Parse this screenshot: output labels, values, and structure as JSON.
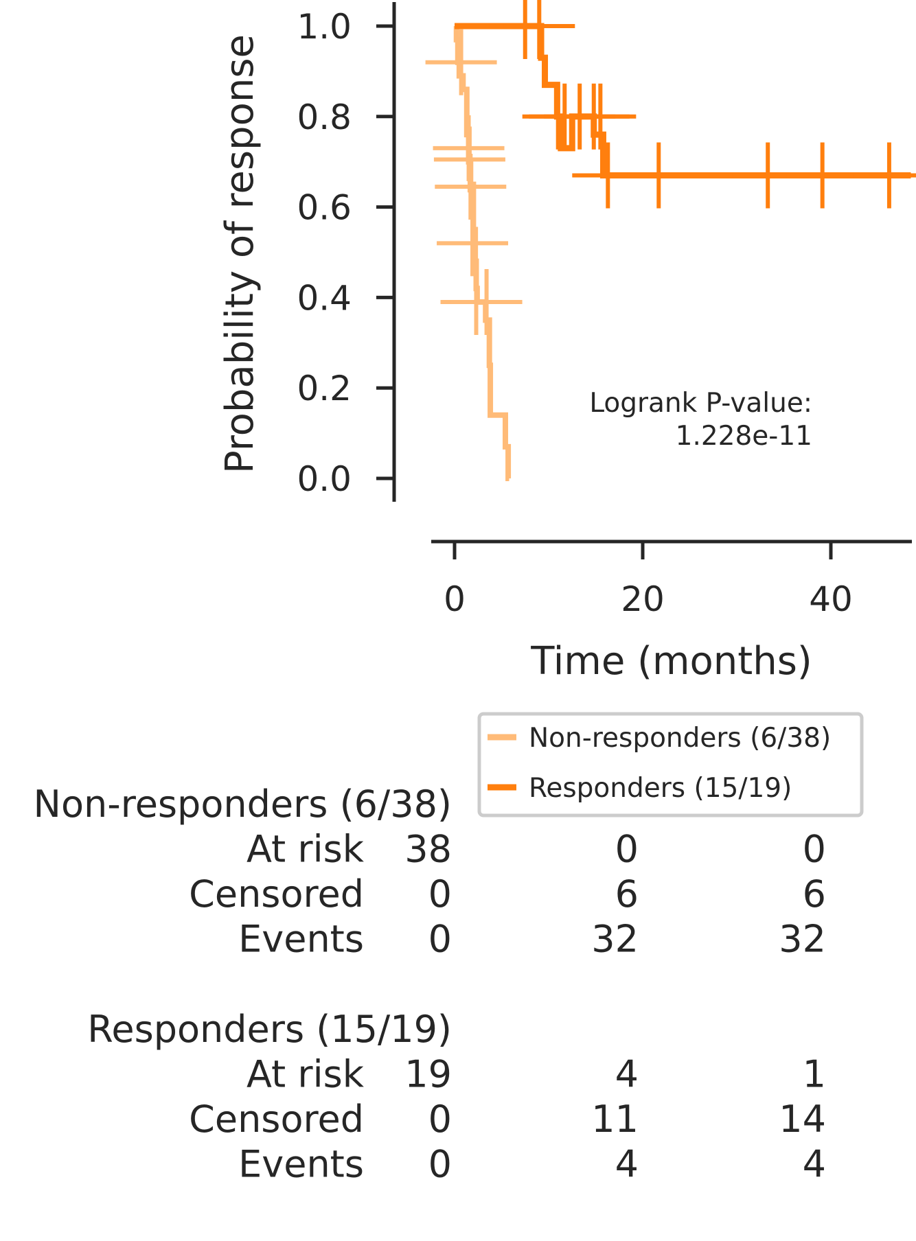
{
  "chart_data": {
    "type": "line",
    "subtype": "kaplan-meier",
    "title": "",
    "xlabel": "Time (months)",
    "ylabel": "Probability of response",
    "xlim": [
      -3.2,
      48.5
    ],
    "ylim": [
      -0.05,
      1.05
    ],
    "xticks": [
      0,
      20,
      40
    ],
    "yticks": [
      0.0,
      0.2,
      0.4,
      0.6,
      0.8,
      1.0
    ],
    "ytick_labels": [
      "0.0",
      "0.2",
      "0.4",
      "0.6",
      "0.8",
      "1.0"
    ],
    "grid": false,
    "legend_position": "below the plot, right",
    "annotation": {
      "line1": "Logrank P-value:",
      "line2": "1.228e-11"
    },
    "series": [
      {
        "name": "Non-responders (6/38)",
        "color": "#ffbb78",
        "steps": [
          [
            0.0,
            1.0
          ],
          [
            0.2,
            0.97
          ],
          [
            0.35,
            0.92
          ],
          [
            0.5,
            0.89
          ],
          [
            0.9,
            0.86
          ],
          [
            1.3,
            0.76
          ],
          [
            1.5,
            0.7
          ],
          [
            1.7,
            0.65
          ],
          [
            2.0,
            0.55
          ],
          [
            2.2,
            0.48
          ],
          [
            2.3,
            0.42
          ],
          [
            2.4,
            0.39
          ],
          [
            3.3,
            0.35
          ],
          [
            3.7,
            0.25
          ],
          [
            3.8,
            0.14
          ],
          [
            5.4,
            0.07
          ],
          [
            5.7,
            0.0
          ]
        ],
        "end_x": 5.8,
        "censor_marks": [
          [
            0.7,
            0.92
          ],
          [
            1.5,
            0.73
          ],
          [
            1.6,
            0.705
          ],
          [
            1.7,
            0.645
          ],
          [
            1.9,
            0.52
          ],
          [
            2.3,
            0.39
          ],
          [
            3.4,
            0.39
          ]
        ]
      },
      {
        "name": "Responders (15/19)",
        "color": "#ff7f0e",
        "steps": [
          [
            0.0,
            1.0
          ],
          [
            9.2,
            0.93
          ],
          [
            9.6,
            0.87
          ],
          [
            10.9,
            0.8
          ],
          [
            11.3,
            0.73
          ],
          [
            12.5,
            0.8
          ],
          [
            14.8,
            0.76
          ],
          [
            15.8,
            0.67
          ]
        ],
        "end_x": 48.5,
        "censor_marks": [
          [
            7.5,
            1.0
          ],
          [
            9.0,
            1.0
          ],
          [
            11.0,
            0.8
          ],
          [
            11.7,
            0.8
          ],
          [
            13.3,
            0.8
          ],
          [
            14.8,
            0.8
          ],
          [
            15.5,
            0.8
          ],
          [
            16.3,
            0.67
          ],
          [
            21.7,
            0.67
          ],
          [
            33.3,
            0.67
          ],
          [
            39.1,
            0.67
          ],
          [
            46.2,
            0.67
          ]
        ]
      }
    ],
    "at_risk_table": {
      "times": [
        "0",
        "20",
        "40"
      ],
      "groups": [
        {
          "name": "Non-responders (6/38)",
          "rows": [
            {
              "label": "At risk",
              "values": [
                "38",
                "0",
                "0"
              ]
            },
            {
              "label": "Censored",
              "values": [
                "0",
                "6",
                "6"
              ]
            },
            {
              "label": "Events",
              "values": [
                "0",
                "32",
                "32"
              ]
            }
          ]
        },
        {
          "name": "Responders (15/19)",
          "rows": [
            {
              "label": "At risk",
              "values": [
                "19",
                "4",
                "1"
              ]
            },
            {
              "label": "Censored",
              "values": [
                "0",
                "11",
                "14"
              ]
            },
            {
              "label": "Events",
              "values": [
                "0",
                "4",
                "4"
              ]
            }
          ]
        }
      ]
    }
  }
}
